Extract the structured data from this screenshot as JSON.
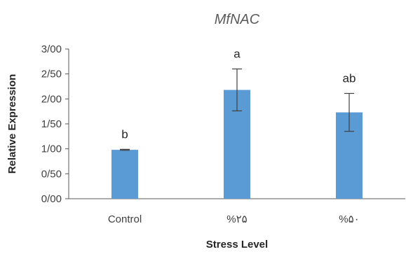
{
  "chart_data": {
    "type": "bar",
    "title": "MfNAC",
    "xlabel": "Stress Level",
    "ylabel": "Relative Expression",
    "categories": [
      "Control",
      "%۲۵",
      "%۵۰"
    ],
    "values": [
      0.98,
      2.18,
      1.73
    ],
    "error_bars": [
      0.01,
      0.42,
      0.38
    ],
    "significance_labels": [
      "b",
      "a",
      "ab"
    ],
    "ylim": [
      0,
      3
    ],
    "yticks": [
      0,
      0.5,
      1,
      1.5,
      2,
      2.5,
      3
    ],
    "ytick_labels": [
      "0/00",
      "0/50",
      "1/00",
      "1/50",
      "2/00",
      "2/50",
      "3/00"
    ],
    "grid": false,
    "colors": {
      "bar": "#5b9bd5",
      "axis": "#595959",
      "error": "#404040"
    }
  }
}
